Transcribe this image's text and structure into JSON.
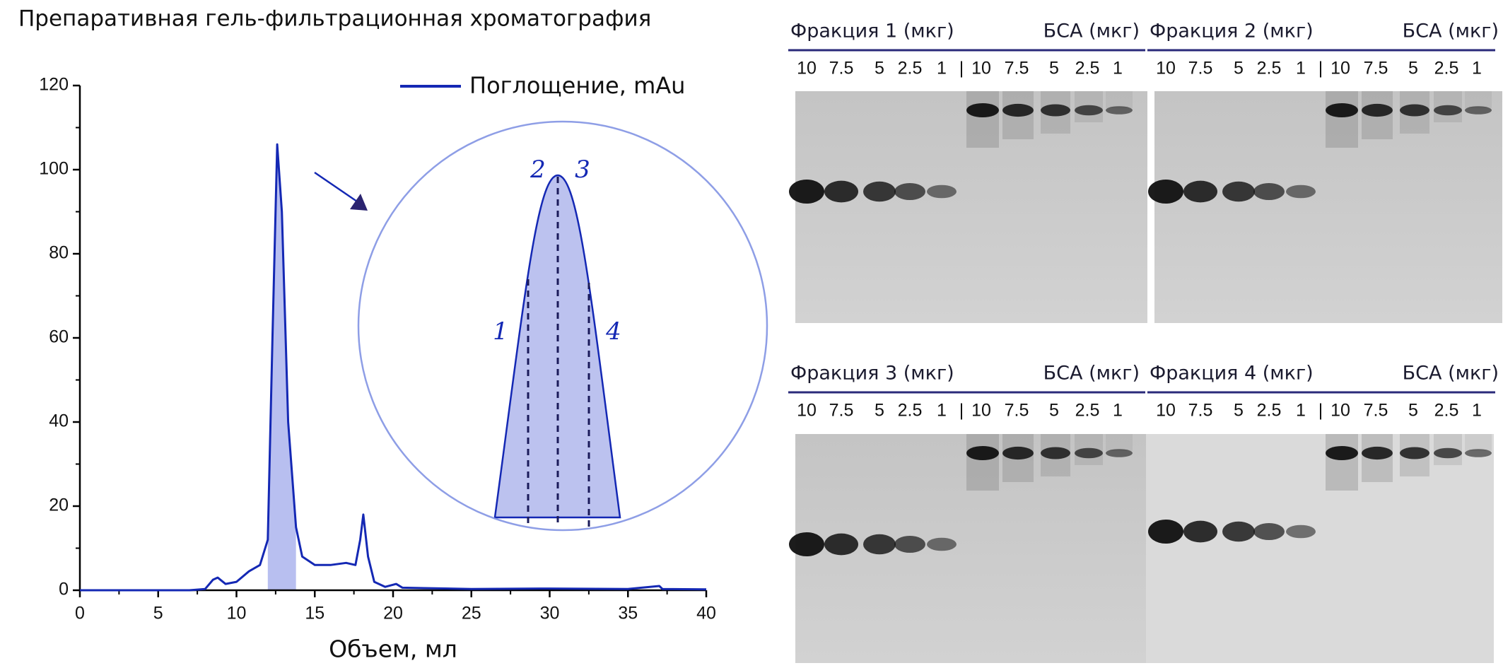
{
  "chart_data": {
    "type": "line",
    "title": "Препаративная гель-фильтрационная хроматография",
    "x_label": "Объем, мл",
    "x": [
      0,
      7,
      8,
      8.5,
      8.8,
      9.3,
      10,
      10.8,
      11.5,
      12,
      12.3,
      12.6,
      12.9,
      13.3,
      13.8,
      14.2,
      15,
      16,
      17,
      17.6,
      17.9,
      18.1,
      18.4,
      18.8,
      19.5,
      20.2,
      20.6,
      22,
      25,
      30,
      35,
      37,
      37.2,
      40
    ],
    "series": [
      {
        "name": "Поглощение, mAu",
        "color": "#1428b4",
        "values": [
          0,
          0,
          0.3,
          2.5,
          3,
          1.5,
          2,
          4.5,
          6,
          12,
          60,
          106,
          90,
          40,
          15,
          8,
          6,
          6,
          6.5,
          6,
          12,
          18,
          8,
          2,
          0.8,
          1.5,
          0.6,
          0.5,
          0.3,
          0.4,
          0.3,
          1,
          0.3,
          0.2
        ]
      }
    ],
    "shaded_x": [
      12,
      13.8
    ],
    "shade_color": "#b8bff0",
    "xlim": [
      0,
      40
    ],
    "xticks": [
      0,
      5,
      10,
      15,
      20,
      25,
      30,
      35,
      40
    ],
    "ylim": [
      0,
      120
    ],
    "yticks": [
      0,
      20,
      40,
      60,
      80,
      100,
      120
    ],
    "annotations": [
      "1",
      "2",
      "3",
      "4"
    ]
  },
  "gels": [
    {
      "fraction_label": "Фракция 1 (мкг)",
      "bsa_label": "БСА (мкг)",
      "lanes": [
        "10",
        "7.5",
        "5",
        "2.5",
        "1",
        "|",
        "10",
        "7.5",
        "5",
        "2.5",
        "1"
      ]
    },
    {
      "fraction_label": "Фракция 2 (мкг)",
      "bsa_label": "БСА (мкг)",
      "lanes": [
        "10",
        "7.5",
        "5",
        "2.5",
        "1",
        "|",
        "10",
        "7.5",
        "5",
        "2.5",
        "1"
      ]
    },
    {
      "fraction_label": "Фракция 3 (мкг)",
      "bsa_label": "БСА (мкг)",
      "lanes": [
        "10",
        "7.5",
        "5",
        "2.5",
        "1",
        "|",
        "10",
        "7.5",
        "5",
        "2.5",
        "1"
      ]
    },
    {
      "fraction_label": "Фракция 4 (мкг)",
      "bsa_label": "БСА (мкг)",
      "lanes": [
        "10",
        "7.5",
        "5",
        "2.5",
        "1",
        "|",
        "10",
        "7.5",
        "5",
        "2.5",
        "1"
      ]
    }
  ]
}
